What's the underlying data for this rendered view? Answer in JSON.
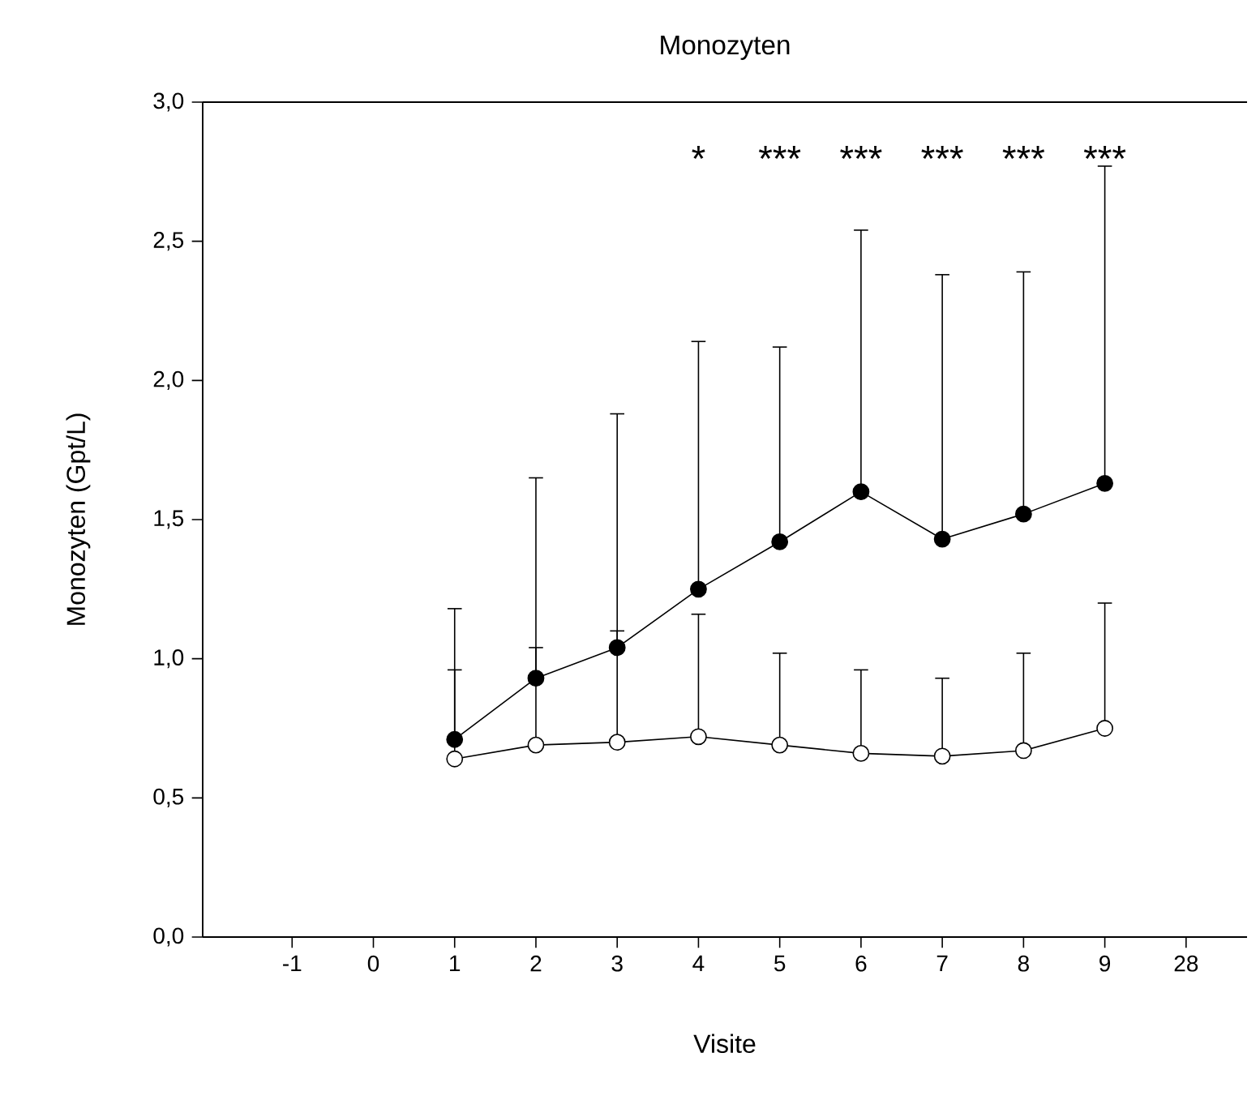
{
  "chart_data": {
    "type": "line",
    "title": "Monozyten",
    "xlabel": "Visite",
    "ylabel": "Monozyten (Gpt/L)",
    "categories": [
      "-1",
      "0",
      "1",
      "2",
      "3",
      "4",
      "5",
      "6",
      "7",
      "8",
      "9",
      "28"
    ],
    "series": [
      {
        "color": "#000000",
        "values": [
          null,
          null,
          0.71,
          0.93,
          1.04,
          1.25,
          1.42,
          1.6,
          1.43,
          1.52,
          1.63,
          null
        ],
        "errors": [
          null,
          null,
          [
            0.71,
            1.18
          ],
          [
            0.93,
            1.65
          ],
          [
            1.04,
            1.88
          ],
          [
            1.25,
            2.14
          ],
          [
            1.42,
            2.12
          ],
          [
            1.6,
            2.54
          ],
          [
            1.43,
            2.38
          ],
          [
            1.52,
            2.39
          ],
          [
            1.63,
            2.77
          ],
          null
        ]
      },
      {
        "color": "#ffffff",
        "values": [
          null,
          null,
          0.64,
          0.69,
          0.7,
          0.72,
          0.69,
          0.66,
          0.65,
          0.67,
          0.75,
          null
        ],
        "errors": [
          null,
          null,
          [
            0.64,
            0.96
          ],
          [
            0.69,
            1.04
          ],
          [
            0.7,
            1.1
          ],
          [
            0.72,
            1.16
          ],
          [
            0.69,
            1.02
          ],
          [
            0.66,
            0.96
          ],
          [
            0.65,
            0.93
          ],
          [
            0.67,
            1.02
          ],
          [
            0.75,
            1.2
          ],
          null
        ]
      }
    ],
    "ylim": [
      0,
      3
    ],
    "yticks": [
      {
        "value": 0,
        "label": "0,0"
      },
      {
        "value": 0.5,
        "label": "0,5"
      },
      {
        "value": 1,
        "label": "1,0"
      },
      {
        "value": 1.5,
        "label": "1,5"
      },
      {
        "value": 2,
        "label": "2,0"
      },
      {
        "value": 2.5,
        "label": "2,5"
      },
      {
        "value": 3,
        "label": "3,0"
      }
    ],
    "annotations": [
      "*",
      "***",
      "***",
      "***",
      "***",
      "***"
    ],
    "marker": "circle",
    "line_style": "solid",
    "grid": false
  }
}
